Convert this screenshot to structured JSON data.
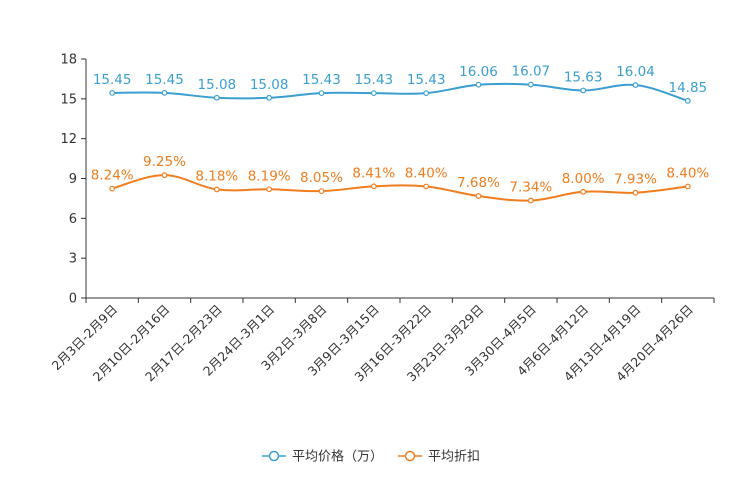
{
  "chart_data": {
    "type": "line",
    "categories": [
      "2月3日-2月9日",
      "2月10日-2月16日",
      "2月17日-2月23日",
      "2月24日-3月1日",
      "3月2日-3月8日",
      "3月9日-3月15日",
      "3月16日-3月22日",
      "3月23日-3月29日",
      "3月30日-4月5日",
      "4月6日-4月12日",
      "4月13日-4月19日",
      "4月20日-4月26日"
    ],
    "ylim": [
      0,
      18
    ],
    "yticks": [
      "0",
      "3",
      "6",
      "9",
      "12",
      "15",
      "18"
    ],
    "series": [
      {
        "name": "平均价格（万）",
        "color": "#3a9fd0",
        "values": [
          15.45,
          15.45,
          15.08,
          15.08,
          15.43,
          15.43,
          15.43,
          16.06,
          16.07,
          15.63,
          16.04,
          14.85
        ],
        "labels": [
          "15.45",
          "15.45",
          "15.08",
          "15.08",
          "15.43",
          "15.43",
          "15.43",
          "16.06",
          "16.07",
          "15.63",
          "16.04",
          "14.85"
        ]
      },
      {
        "name": "平均折扣",
        "color": "#f07d1e",
        "values": [
          8.24,
          9.25,
          8.18,
          8.19,
          8.05,
          8.41,
          8.4,
          7.68,
          7.34,
          8.0,
          7.93,
          8.4
        ],
        "labels": [
          "8.24%",
          "9.25%",
          "8.18%",
          "8.19%",
          "8.05%",
          "8.41%",
          "8.40%",
          "7.68%",
          "7.34%",
          "8.00%",
          "7.93%",
          "8.40%"
        ]
      }
    ]
  }
}
